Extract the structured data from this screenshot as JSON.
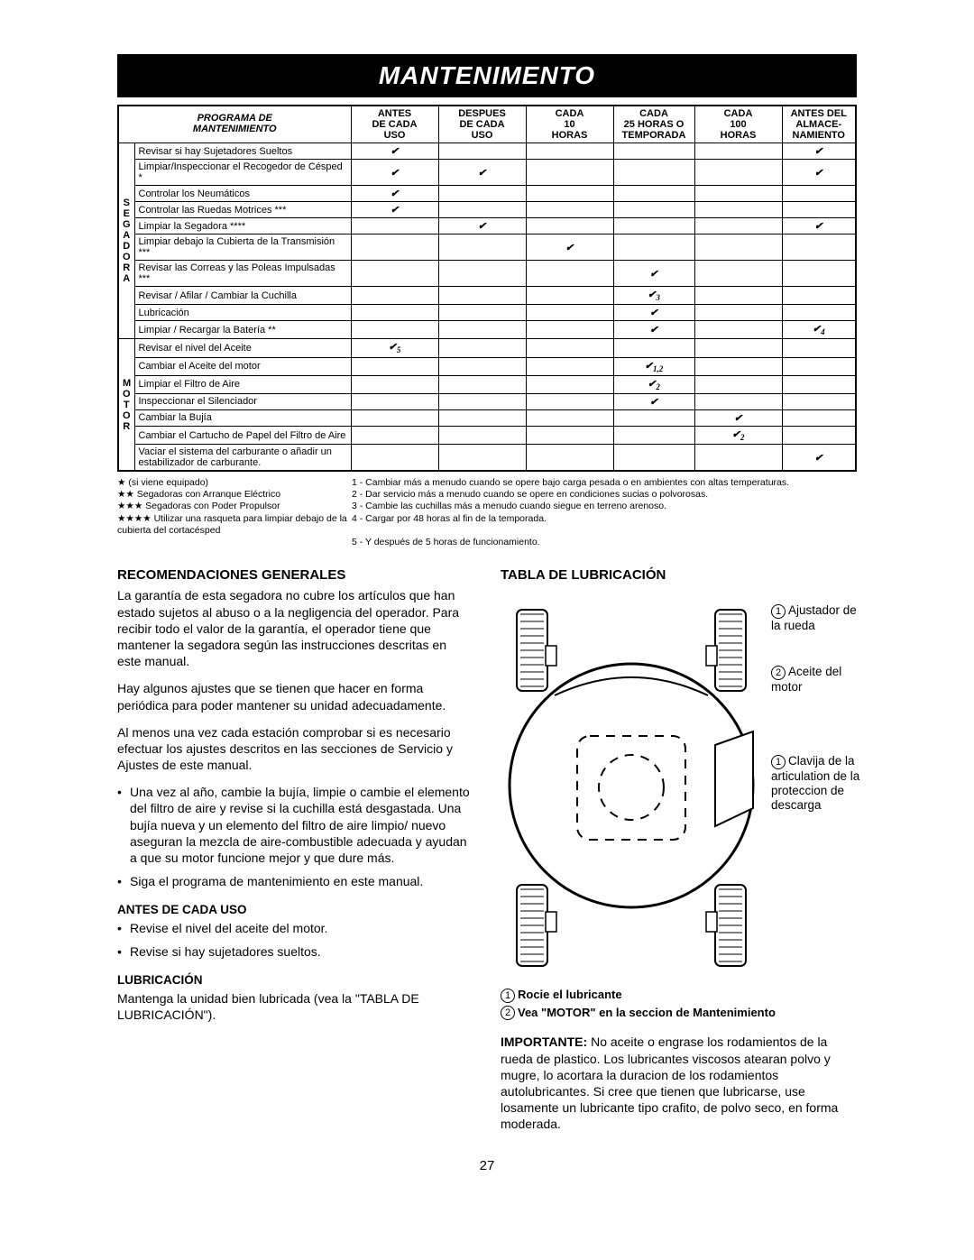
{
  "title_bar": "MANTENIMENTO",
  "schedule": {
    "title": "PROGRAMA DE\nMANTENIMIENTO",
    "cols": [
      "ANTES DE CADA USO",
      "DESPUES DE CADA USO",
      "CADA 10 HORAS",
      "CADA 25 HORAS O TEMPORADA",
      "CADA 100 HORAS",
      "ANTES DEL ALMACE- NAMIENTO"
    ],
    "side1": "SEGADORA",
    "side2": "MOTOR",
    "rows": [
      {
        "t": "Revisar si hay Sujetadores Sueltos",
        "c": [
          "✔",
          "",
          "",
          "",
          "",
          "✔"
        ]
      },
      {
        "t": "Limpiar/Inspeccionar el Recogedor de Césped *",
        "c": [
          "✔",
          "✔",
          "",
          "",
          "",
          "✔"
        ]
      },
      {
        "t": "Controlar los Neumáticos",
        "c": [
          "✔",
          "",
          "",
          "",
          "",
          ""
        ]
      },
      {
        "t": "Controlar las Ruedas Motrices ***",
        "c": [
          "✔",
          "",
          "",
          "",
          "",
          ""
        ]
      },
      {
        "t": "Limpiar la Segadora ****",
        "c": [
          "",
          "✔",
          "",
          "",
          "",
          "✔"
        ]
      },
      {
        "t": "Limpiar debajo la Cubierta de la Transmisión ***",
        "c": [
          "",
          "",
          "✔",
          "",
          "",
          ""
        ]
      },
      {
        "t": "Revisar las Correas y las Poleas Impulsadas ***",
        "c": [
          "",
          "",
          "",
          "✔",
          "",
          ""
        ]
      },
      {
        "t": "Revisar / Afilar / Cambiar la Cuchilla",
        "c": [
          "",
          "",
          "",
          "✔3",
          "",
          ""
        ]
      },
      {
        "t": "Lubricación",
        "c": [
          "",
          "",
          "",
          "✔",
          "",
          ""
        ]
      },
      {
        "t": "Limpiar / Recargar la Batería **",
        "c": [
          "",
          "",
          "",
          "✔",
          "",
          "✔4"
        ]
      },
      {
        "t": "Revisar el nivel del Aceite",
        "c": [
          "✔5",
          "",
          "",
          "",
          "",
          ""
        ]
      },
      {
        "t": "Cambiar el Aceite del motor",
        "c": [
          "",
          "",
          "",
          "✔1,2",
          "",
          ""
        ]
      },
      {
        "t": "Limpiar el Filtro de Aire",
        "c": [
          "",
          "",
          "",
          "✔2",
          "",
          ""
        ]
      },
      {
        "t": "Inspeccionar el Silenciador",
        "c": [
          "",
          "",
          "",
          "✔",
          "",
          ""
        ]
      },
      {
        "t": "Cambiar la Bujía",
        "c": [
          "",
          "",
          "",
          "",
          "✔",
          ""
        ]
      },
      {
        "t": "Cambiar el Cartucho de Papel del Filtro de Aire",
        "c": [
          "",
          "",
          "",
          "",
          "✔2",
          ""
        ]
      },
      {
        "t": "Vaciar el sistema del carburante o añadir un estabilizador de carburante.",
        "c": [
          "",
          "",
          "",
          "",
          "",
          "✔"
        ]
      }
    ],
    "notes_left": [
      "★ (si viene equipado)",
      "★★ Segadoras con Arranque Eléctrico",
      "★★★ Segadoras con Poder Propulsor",
      "★★★★ Utilizar una rasqueta para limpiar debajo de la cubierta del cortacésped"
    ],
    "notes_right": [
      "1 - Cambiar más a menudo cuando se opere bajo carga pesada o en ambientes con altas temperaturas.",
      "2 - Dar servicio más a menudo cuando se opere en condiciones sucias o polvorosas.",
      "3 - Cambie las cuchillas más a menudo cuando siegue en terreno arenoso.",
      "4 - Cargar por 48 horas al fin de la temporada.",
      "5 - Y después de 5 horas de funcionamiento."
    ]
  },
  "left": {
    "h_recs": "RECOMENDACIONES GENERALES",
    "p1": "La garantía de esta segadora no cubre los artículos que han estado sujetos al abuso o a la negligencia del operador. Para recibir todo el valor de la garantía, el operador tiene que mantener la segadora según las instrucciones descritas en este manual.",
    "p2": "Hay algunos ajustes que se tienen que hacer en forma periódica para poder mantener su unidad adecuadamente.",
    "p3": "Al menos una vez cada estación comprobar si es necesario efectuar los ajustes descritos en las secciones de Servicio y Ajustes de este manual.",
    "b1": "Una vez al año, cambie la bujía, limpie o cambie el elemento del filtro de aire y revise si la cuchilla está desgastada. Una bujía nueva y un elemento del filtro de aire limpio/ nuevo aseguran la mezcla de aire-combustible adecuada y ayudan a que su motor funcione mejor y que dure más.",
    "b2": "Siga el programa de mantenimiento en este manual.",
    "h_antes": "ANTES DE CADA USO",
    "a1": "Revise el nivel del aceite del motor.",
    "a2": "Revise si hay sujetadores sueltos.",
    "h_lub": "LUBRICACIÓN",
    "p_lub": "Mantenga la unidad bien lubricada (vea la \"TABLA DE LUBRICACIÓN\")."
  },
  "right": {
    "h_tabla": "TABLA DE LUBRICACIÓN",
    "c1": "Ajustador de la rueda",
    "c2": "Aceite del motor",
    "c3": "Clavija de la articulation de la proteccion de descarga",
    "leg1": "Rocie el lubricante",
    "leg2": "Vea \"MOTOR\" en la seccion de Mantenimiento",
    "imp": "IMPORTANTE: No aceite o engrase los rodamientos de la rueda de plastico. Los lubricantes viscosos atearan polvo y mugre, lo acortara la duracion de los rodamientos autolubricantes. Si cree que tienen que lubricarse, use losamente un lubricante tipo crafito, de polvo seco, en forma moderada."
  },
  "page_number": "27",
  "colors": {
    "bg": "#ffffff",
    "fg": "#000000",
    "bar_bg": "#000000",
    "bar_fg": "#ffffff"
  }
}
